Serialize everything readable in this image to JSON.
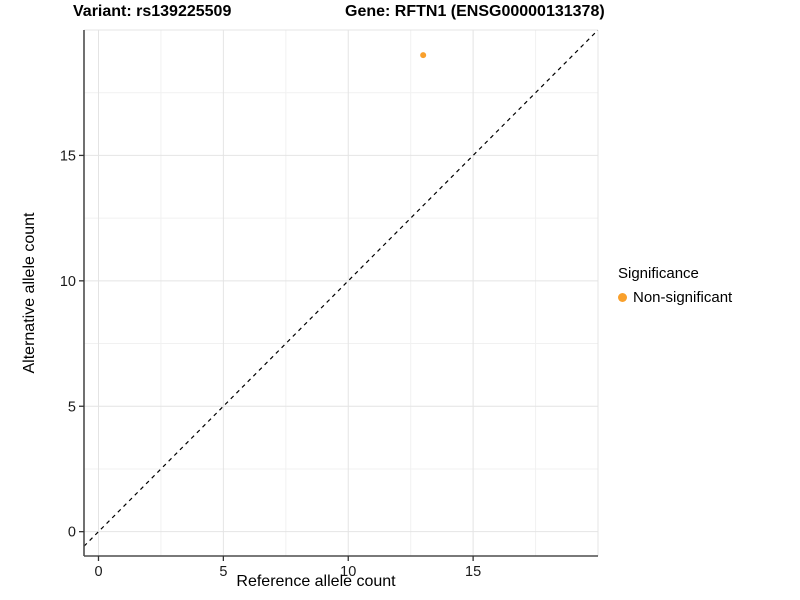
{
  "chart_data": {
    "type": "scatter",
    "title_left": "Variant: rs139225509",
    "title_right": "Gene: RFTN1 (ENSG00000131378)",
    "xlabel": "Reference allele count",
    "ylabel": "Alternative allele count",
    "xlim": [
      -0.58,
      20
    ],
    "ylim": [
      -0.97,
      20
    ],
    "x_ticks": [
      0,
      5,
      10,
      15
    ],
    "y_ticks": [
      0,
      5,
      10,
      15
    ],
    "x_major_grid": [
      0,
      5,
      10,
      15,
      20
    ],
    "y_major_grid": [
      0,
      5,
      10,
      15,
      20
    ],
    "x_minor_grid": [
      2.5,
      7.5,
      12.5,
      17.5
    ],
    "y_minor_grid": [
      2.5,
      7.5,
      12.5,
      17.5
    ],
    "points": [
      {
        "x": 13,
        "y": 19,
        "series": "Non-significant"
      }
    ],
    "reference_line": {
      "type": "identity",
      "slope": 1,
      "intercept": 0,
      "style": "dashed",
      "color": "#000000"
    },
    "legend": {
      "title": "Significance",
      "position": "right",
      "items": [
        {
          "label": "Non-significant",
          "color": "#F9A02C"
        }
      ]
    },
    "grid": true,
    "colors": {
      "point": "#F9A02C",
      "grid_major": "#E4E4E4",
      "grid_minor": "#F1F1F1",
      "axis_line": "#4D4D4D",
      "tick_mark": "#333333",
      "tick_text": "#1A1A1A",
      "text": "#000000"
    }
  }
}
